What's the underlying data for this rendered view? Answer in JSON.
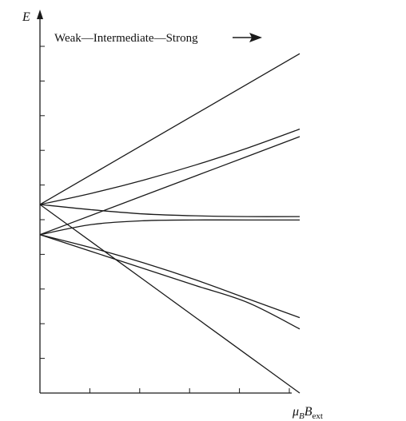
{
  "chart_data": {
    "type": "line",
    "title": "",
    "ylabel": "E",
    "xlabel_main": "μ",
    "xlabel_sub1": "B",
    "xlabel_main2": "B",
    "xlabel_sub2": "ext",
    "annotation": "Weak—Intermediate—Strong",
    "xlim": [
      0,
      1
    ],
    "ylim": [
      0,
      1
    ],
    "grid": false,
    "series": [
      {
        "x": [
          0,
          0.2,
          0.4,
          0.6,
          0.8,
          1.0
        ],
        "y": [
          0.5,
          0.58,
          0.66,
          0.74,
          0.82,
          0.9
        ]
      },
      {
        "x": [
          0,
          0.2,
          0.4,
          0.6,
          0.8,
          1.0
        ],
        "y": [
          0.5,
          0.53,
          0.565,
          0.605,
          0.65,
          0.7
        ]
      },
      {
        "x": [
          0,
          0.2,
          0.4,
          0.6,
          0.8,
          1.0
        ],
        "y": [
          0.42,
          0.472,
          0.524,
          0.576,
          0.628,
          0.68
        ]
      },
      {
        "x": [
          0,
          0.2,
          0.4,
          0.6,
          0.8,
          1.0
        ],
        "y": [
          0.5,
          0.486,
          0.475,
          0.47,
          0.468,
          0.468
        ]
      },
      {
        "x": [
          0,
          0.2,
          0.4,
          0.6,
          0.8,
          1.0
        ],
        "y": [
          0.42,
          0.447,
          0.457,
          0.459,
          0.459,
          0.459
        ]
      },
      {
        "x": [
          0,
          0.2,
          0.4,
          0.6,
          0.8,
          1.0
        ],
        "y": [
          0.42,
          0.385,
          0.345,
          0.3,
          0.25,
          0.2
        ]
      },
      {
        "x": [
          0,
          0.2,
          0.4,
          0.6,
          0.8,
          1.0
        ],
        "y": [
          0.42,
          0.375,
          0.33,
          0.285,
          0.24,
          0.17
        ]
      },
      {
        "x": [
          0,
          0.2,
          0.4,
          0.6,
          0.8,
          1.0
        ],
        "y": [
          0.5,
          0.4,
          0.3,
          0.2,
          0.1,
          0.0
        ]
      }
    ],
    "y_ticks": [
      0.1,
      0.2,
      0.3,
      0.4,
      0.5,
      0.6,
      0.7,
      0.8,
      0.9,
      1.0
    ],
    "x_ticks": [
      0.2,
      0.4,
      0.6,
      0.8,
      1.0
    ]
  }
}
